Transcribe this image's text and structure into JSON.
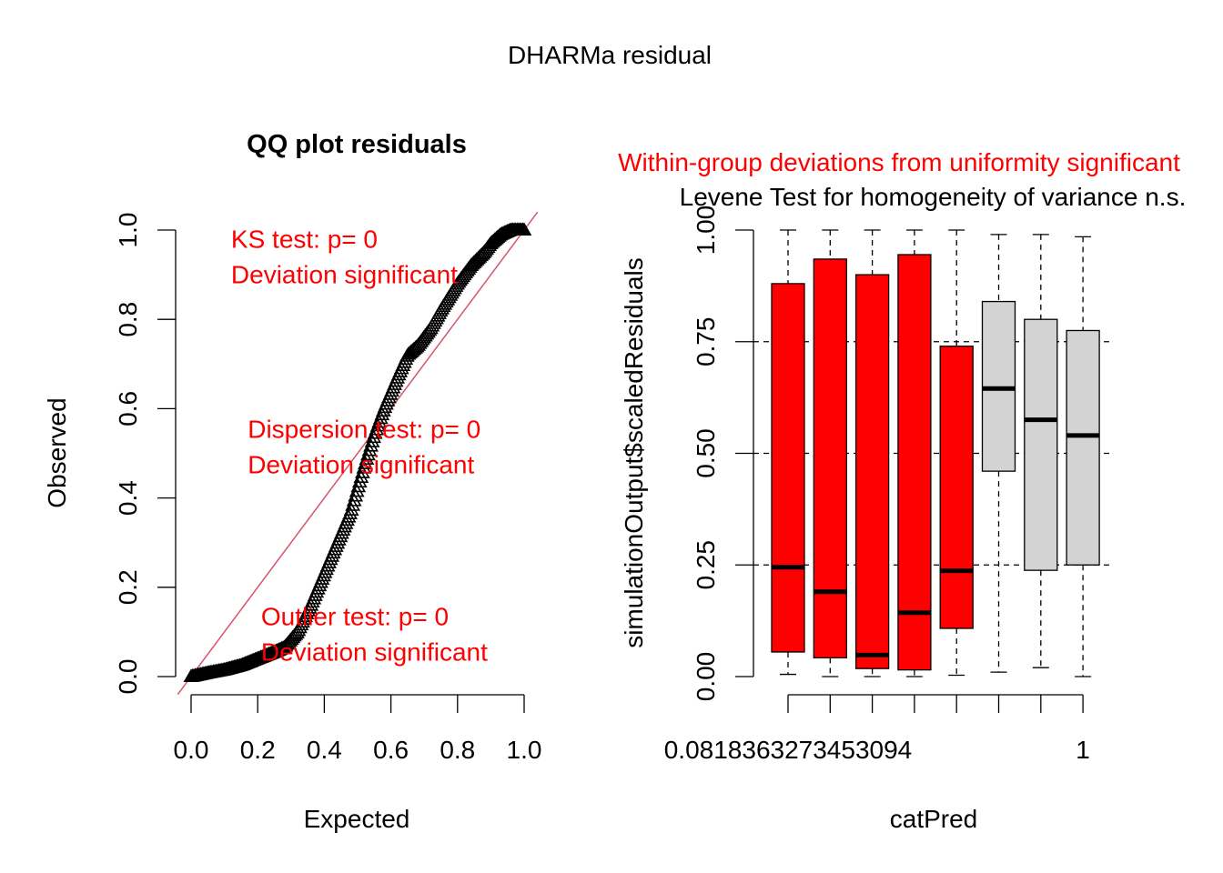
{
  "figure": {
    "title": "DHARMa residual"
  },
  "colors": {
    "significant": "#ff0000",
    "not_significant": "#d3d3d3",
    "reference_line": "#d6546a",
    "points": "#000000"
  },
  "chart_data": [
    {
      "type": "scatter",
      "title": "QQ plot residuals",
      "xlabel": "Expected",
      "ylabel": "Observed",
      "xlim": [
        0,
        1
      ],
      "ylim": [
        0,
        1
      ],
      "xticks": [
        "0.0",
        "0.2",
        "0.4",
        "0.6",
        "0.8",
        "1.0"
      ],
      "yticks": [
        "0.0",
        "0.2",
        "0.4",
        "0.6",
        "0.8",
        "1.0"
      ],
      "reference_line": {
        "from": [
          0,
          0
        ],
        "to": [
          1,
          1
        ]
      },
      "annotations": [
        {
          "text1": "KS test: p= 0",
          "text2": "Deviation  significant",
          "x": 0.12,
          "y": 0.96
        },
        {
          "text1": "Dispersion test: p= 0",
          "text2": "Deviation  significant",
          "x": 0.17,
          "y": 0.535
        },
        {
          "text1": "Outlier test: p= 0",
          "text2": "Deviation  significant",
          "x": 0.21,
          "y": 0.115
        }
      ],
      "curve": {
        "x": [
          0.0,
          0.05,
          0.1,
          0.15,
          0.2,
          0.25,
          0.28,
          0.32,
          0.36,
          0.4,
          0.44,
          0.48,
          0.5,
          0.52,
          0.55,
          0.58,
          0.62,
          0.65,
          0.68,
          0.72,
          0.75,
          0.8,
          0.84,
          0.88,
          0.9,
          0.93,
          0.96,
          1.0
        ],
        "y": [
          0.0,
          0.008,
          0.015,
          0.025,
          0.04,
          0.055,
          0.065,
          0.1,
          0.16,
          0.23,
          0.3,
          0.37,
          0.42,
          0.47,
          0.54,
          0.6,
          0.67,
          0.72,
          0.74,
          0.78,
          0.82,
          0.88,
          0.92,
          0.95,
          0.97,
          0.99,
          1.0,
          1.0
        ]
      }
    },
    {
      "type": "boxplot",
      "title": "Within-group deviations from uniformity significant",
      "subtitle": "Levene Test for homogeneity of variance n.s.",
      "xlabel": "catPred",
      "ylabel": "simulationOutput$scaledResiduals",
      "ylim": [
        0,
        1
      ],
      "yticks": [
        "0.00",
        "0.25",
        "0.50",
        "0.75",
        "1.00"
      ],
      "hlines": [
        0.25,
        0.5,
        0.75
      ],
      "xtick_labels": [
        "0.0818363273453094",
        "1"
      ],
      "boxes": [
        {
          "whisker_low": 0.005,
          "q1": 0.055,
          "median": 0.245,
          "q3": 0.88,
          "whisker_high": 1.0,
          "significant": true
        },
        {
          "whisker_low": 0.0,
          "q1": 0.042,
          "median": 0.19,
          "q3": 0.935,
          "whisker_high": 1.0,
          "significant": true
        },
        {
          "whisker_low": 0.0,
          "q1": 0.018,
          "median": 0.048,
          "q3": 0.9,
          "whisker_high": 1.0,
          "significant": true
        },
        {
          "whisker_low": 0.0,
          "q1": 0.015,
          "median": 0.143,
          "q3": 0.945,
          "whisker_high": 1.0,
          "significant": true
        },
        {
          "whisker_low": 0.003,
          "q1": 0.108,
          "median": 0.237,
          "q3": 0.74,
          "whisker_high": 1.0,
          "significant": true
        },
        {
          "whisker_low": 0.01,
          "q1": 0.46,
          "median": 0.645,
          "q3": 0.84,
          "whisker_high": 0.99,
          "significant": false
        },
        {
          "whisker_low": 0.02,
          "q1": 0.238,
          "median": 0.575,
          "q3": 0.8,
          "whisker_high": 0.99,
          "significant": false
        },
        {
          "whisker_low": 0.0,
          "q1": 0.25,
          "median": 0.54,
          "q3": 0.775,
          "whisker_high": 0.985,
          "significant": false
        }
      ]
    }
  ]
}
